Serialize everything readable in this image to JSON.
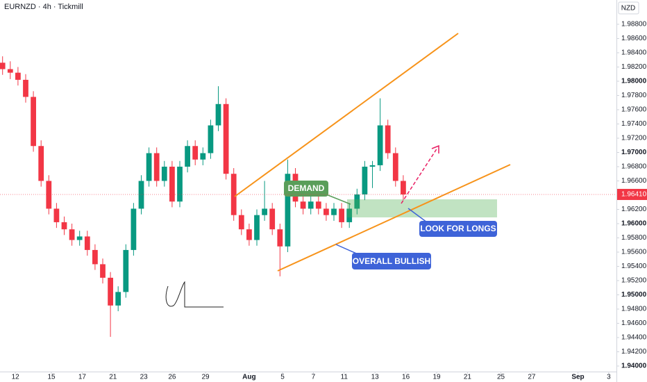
{
  "chart_data": {
    "type": "candlestick",
    "title": "EURNZD · 4h · Tickmill",
    "currency": "NZD",
    "up_color": "#089981",
    "down_color": "#f23645",
    "grid": false,
    "xlim": [
      -1,
      239
    ],
    "ylim": [
      1.93922,
      1.99141
    ],
    "xticks": [
      {
        "value": 5,
        "label": "12"
      },
      {
        "value": 19,
        "label": "15"
      },
      {
        "value": 31,
        "label": "17"
      },
      {
        "value": 43,
        "label": "21"
      },
      {
        "value": 55,
        "label": "23"
      },
      {
        "value": 66,
        "label": "26"
      },
      {
        "value": 79,
        "label": "29"
      },
      {
        "value": 96,
        "label": "Aug"
      },
      {
        "value": 109,
        "label": "5"
      },
      {
        "value": 121,
        "label": "7"
      },
      {
        "value": 133,
        "label": "11"
      },
      {
        "value": 145,
        "label": "13"
      },
      {
        "value": 157,
        "label": "16"
      },
      {
        "value": 169,
        "label": "19"
      },
      {
        "value": 181,
        "label": "21"
      },
      {
        "value": 194,
        "label": "25"
      },
      {
        "value": 206,
        "label": "27"
      },
      {
        "value": 224,
        "label": "Sep"
      },
      {
        "value": 236,
        "label": "3"
      }
    ],
    "yticks": [
      {
        "value": 1.94,
        "label": "1.94000"
      },
      {
        "value": 1.942,
        "label": "1.94200"
      },
      {
        "value": 1.944,
        "label": "1.94400"
      },
      {
        "value": 1.946,
        "label": "1.94600"
      },
      {
        "value": 1.948,
        "label": "1.94800"
      },
      {
        "value": 1.95,
        "label": "1.95000"
      },
      {
        "value": 1.952,
        "label": "1.95200"
      },
      {
        "value": 1.954,
        "label": "1.95400"
      },
      {
        "value": 1.956,
        "label": "1.95600"
      },
      {
        "value": 1.958,
        "label": "1.95800"
      },
      {
        "value": 1.96,
        "label": "1.96000"
      },
      {
        "value": 1.962,
        "label": "1.96200"
      },
      {
        "value": 1.966,
        "label": "1.96600"
      },
      {
        "value": 1.968,
        "label": "1.96800"
      },
      {
        "value": 1.97,
        "label": "1.97000"
      },
      {
        "value": 1.972,
        "label": "1.97200"
      },
      {
        "value": 1.974,
        "label": "1.97400"
      },
      {
        "value": 1.976,
        "label": "1.97600"
      },
      {
        "value": 1.978,
        "label": "1.97800"
      },
      {
        "value": 1.98,
        "label": "1.98000"
      },
      {
        "value": 1.982,
        "label": "1.98200"
      },
      {
        "value": 1.984,
        "label": "1.98400"
      },
      {
        "value": 1.986,
        "label": "1.98600"
      },
      {
        "value": 1.988,
        "label": "1.98800"
      }
    ],
    "last_price": {
      "value": 1.9641,
      "label": "1.96410"
    },
    "x": [
      0,
      3,
      6,
      9,
      12,
      15,
      18,
      21,
      24,
      27,
      30,
      33,
      36,
      39,
      42,
      45,
      48,
      51,
      54,
      57,
      60,
      63,
      66,
      69,
      72,
      75,
      78,
      81,
      84,
      87,
      90,
      93,
      96,
      99,
      102,
      105,
      108,
      111,
      114,
      117,
      120,
      123,
      126,
      129,
      132,
      135,
      138,
      141,
      144,
      147,
      150,
      153,
      156
    ],
    "open": [
      1.9826,
      1.9817,
      1.9812,
      1.9802,
      1.9778,
      1.9709,
      1.966,
      1.9621,
      1.9602,
      1.9592,
      1.9577,
      1.9582,
      1.9563,
      1.9543,
      1.9524,
      1.9485,
      1.9504,
      1.9563,
      1.9621,
      1.966,
      1.9699,
      1.966,
      1.968,
      1.9631,
      1.968,
      1.9709,
      1.969,
      1.9699,
      1.9738,
      1.9768,
      1.967,
      1.9612,
      1.9592,
      1.9577,
      1.9612,
      1.9621,
      1.9592,
      1.9568,
      1.967,
      1.9631,
      1.9621,
      1.9631,
      1.9621,
      1.9612,
      1.9621,
      1.9602,
      1.9621,
      1.9641,
      1.968,
      1.9682,
      1.9738,
      1.9699,
      1.966
    ],
    "high": [
      1.9835,
      1.9828,
      1.982,
      1.981,
      1.9786,
      1.9717,
      1.9668,
      1.9629,
      1.961,
      1.96,
      1.959,
      1.959,
      1.9571,
      1.9551,
      1.9532,
      1.9512,
      1.9571,
      1.9629,
      1.9668,
      1.9707,
      1.9707,
      1.9688,
      1.9688,
      1.9688,
      1.9717,
      1.9717,
      1.9707,
      1.9746,
      1.9793,
      1.9776,
      1.9678,
      1.962,
      1.96,
      1.962,
      1.966,
      1.9629,
      1.96,
      1.969,
      1.9678,
      1.9639,
      1.9639,
      1.9639,
      1.9629,
      1.9629,
      1.9629,
      1.9629,
      1.9649,
      1.9688,
      1.9688,
      1.9776,
      1.9746,
      1.9707,
      1.9668
    ],
    "low": [
      1.9809,
      1.9803,
      1.9794,
      1.977,
      1.9701,
      1.9652,
      1.9613,
      1.9594,
      1.9584,
      1.9569,
      1.9569,
      1.9555,
      1.9535,
      1.9516,
      1.9441,
      1.9477,
      1.9496,
      1.9555,
      1.9613,
      1.9652,
      1.9652,
      1.9652,
      1.9623,
      1.9623,
      1.9672,
      1.9682,
      1.9682,
      1.9691,
      1.973,
      1.9662,
      1.9604,
      1.9584,
      1.9569,
      1.9569,
      1.9604,
      1.9584,
      1.9526,
      1.956,
      1.9623,
      1.9613,
      1.9613,
      1.9613,
      1.9604,
      1.9604,
      1.9594,
      1.9594,
      1.9613,
      1.9633,
      1.965,
      1.9674,
      1.9691,
      1.9652,
      1.9633
    ],
    "close": [
      1.9817,
      1.9812,
      1.9802,
      1.9778,
      1.9709,
      1.966,
      1.9621,
      1.9602,
      1.9592,
      1.9577,
      1.9582,
      1.9563,
      1.9543,
      1.9524,
      1.9485,
      1.9504,
      1.9563,
      1.9621,
      1.966,
      1.9699,
      1.966,
      1.968,
      1.9631,
      1.968,
      1.9709,
      1.969,
      1.9699,
      1.9738,
      1.9768,
      1.967,
      1.9612,
      1.9592,
      1.9577,
      1.9612,
      1.9621,
      1.9592,
      1.9568,
      1.967,
      1.9631,
      1.9621,
      1.9631,
      1.9621,
      1.9612,
      1.9621,
      1.9602,
      1.9621,
      1.9641,
      1.968,
      1.9682,
      1.9738,
      1.9699,
      1.966,
      1.9641
    ],
    "annotations": [
      "DEMAND",
      "LOOK FOR LONGS",
      "OVERALL BULLISH"
    ]
  }
}
